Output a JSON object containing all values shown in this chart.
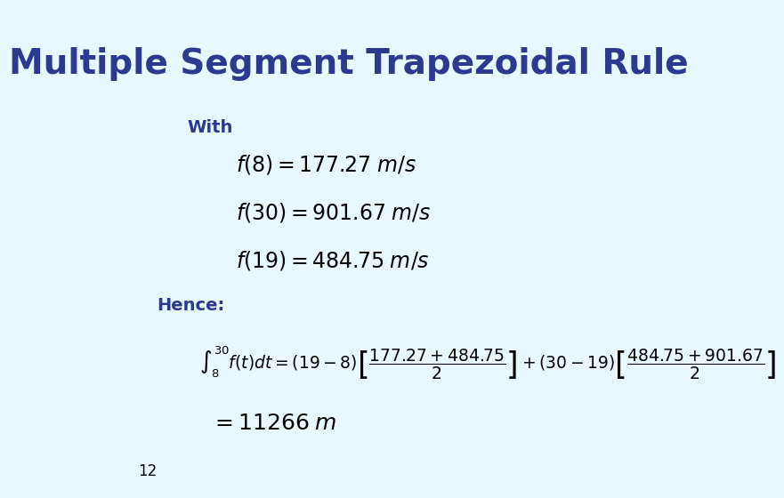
{
  "title": "Multiple Segment Trapezoidal Rule",
  "title_color": "#2B3990",
  "title_fontsize": 28,
  "background_color": "#E8F8FF",
  "with_label": "With",
  "hence_label": "Hence:",
  "eq1": "f(8) = 177.27\\; m/s",
  "eq2": "f(30) = 901.67\\; m/s",
  "eq3": "f(19) = 484.75\\; m/s",
  "integral_expr": "\\int_{8}^{30} f(t)dt = (19-8)\\left[\\frac{177.27+484.75}{2}\\right] + (30-19)\\left[\\frac{484.75+901.67}{2}\\right]",
  "result_expr": "= 11266\\; m",
  "slide_number": "12",
  "label_fontsize": 14,
  "eq_fontsize": 17,
  "math_fontsize": 16,
  "result_fontsize": 18
}
